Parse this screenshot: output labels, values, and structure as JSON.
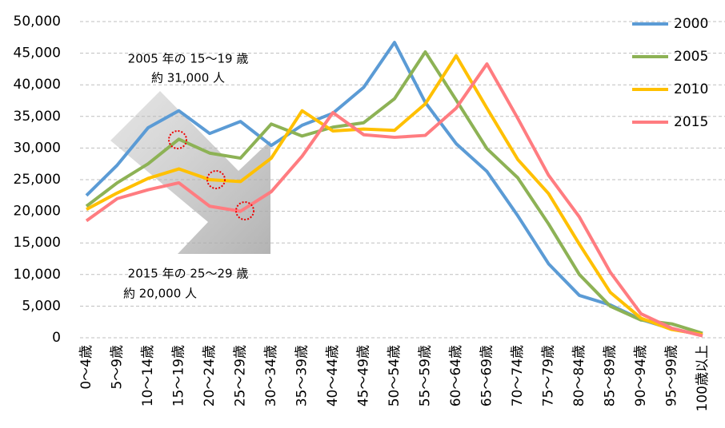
{
  "chart_data": {
    "type": "line",
    "categories": [
      "0～4歳",
      "5～9歳",
      "10～14歳",
      "15～19歳",
      "20～24歳",
      "25～29歳",
      "30～34歳",
      "35～39歳",
      "40～44歳",
      "45～49歳",
      "50～54歳",
      "55～59歳",
      "60～64歳",
      "65～69歳",
      "70～74歳",
      "75～79歳",
      "80～84歳",
      "85～89歳",
      "90～94歳",
      "95～99歳",
      "100歳以上"
    ],
    "series": [
      {
        "name": "2000",
        "color": "#5b9bd5",
        "values": [
          22500,
          27300,
          33200,
          35900,
          32300,
          34200,
          30400,
          33600,
          35500,
          39600,
          46700,
          37200,
          30700,
          26300,
          19300,
          11700,
          6700,
          5200,
          2900,
          1400,
          400
        ]
      },
      {
        "name": "2005",
        "color": "#8db255",
        "values": [
          20800,
          24500,
          27500,
          31400,
          29200,
          28400,
          33800,
          31900,
          33300,
          34000,
          37800,
          45200,
          37600,
          29900,
          25300,
          18000,
          10000,
          5000,
          2800,
          2200,
          700
        ]
      },
      {
        "name": "2010",
        "color": "#ffc000",
        "values": [
          20300,
          22900,
          25200,
          26700,
          25000,
          24700,
          28400,
          35900,
          32700,
          33000,
          32800,
          37000,
          44600,
          36300,
          28200,
          22800,
          14800,
          7200,
          3100,
          1300,
          500
        ]
      },
      {
        "name": "2015",
        "color": "#ff7c80",
        "values": [
          18500,
          22000,
          23400,
          24500,
          20800,
          20000,
          23100,
          28700,
          35600,
          32100,
          31700,
          32000,
          36300,
          43300,
          34700,
          25700,
          19100,
          10400,
          3800,
          1500,
          300
        ]
      }
    ],
    "ylim": [
      0,
      50000
    ],
    "yticks": [
      0,
      {
        "value": 5000,
        "label": "5,000"
      },
      {
        "value": 10000,
        "label": "10,000"
      },
      {
        "value": 15000,
        "label": "15,000"
      },
      {
        "value": 20000,
        "label": "20,000"
      },
      {
        "value": 25000,
        "label": "25,000"
      },
      {
        "value": 30000,
        "label": "30,000"
      },
      {
        "value": 35000,
        "label": "35,000"
      },
      {
        "value": 40000,
        "label": "40,000"
      },
      {
        "value": 45000,
        "label": "45,000"
      },
      {
        "value": 50000,
        "label": "50,000"
      }
    ],
    "grid": true,
    "legend": "top-right",
    "annotations": [
      [
        "2005 年の 15～19 歳",
        "約 31,000 人"
      ],
      [
        "2015 年の 25～29 歳",
        "約 20,000 人"
      ]
    ]
  }
}
